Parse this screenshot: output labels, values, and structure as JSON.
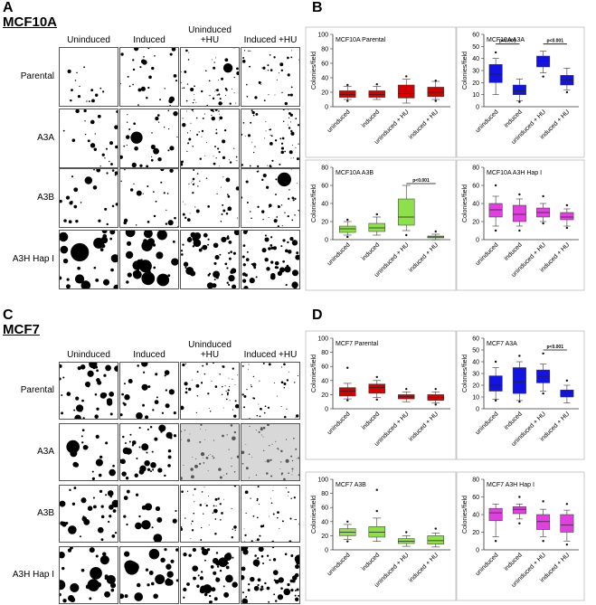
{
  "panels": [
    {
      "label": "A",
      "title": "MCF10A",
      "columns": [
        "Uninduced",
        "Induced",
        "Uninduced +HU",
        "Induced +HU"
      ],
      "rows": [
        "Parental",
        "A3A",
        "A3B",
        "A3H Hap I"
      ]
    },
    {
      "label": "C",
      "title": "MCF7",
      "columns": [
        "Uninduced",
        "Induced",
        "Uninduced +HU",
        "Induced +HU"
      ],
      "rows": [
        "Parental",
        "A3A",
        "A3B",
        "A3H Hap I"
      ]
    }
  ],
  "chart_labels": [
    "B",
    "D"
  ],
  "chart_data": [
    {
      "type": "box",
      "title": "MCF10A Parental",
      "y_label": "Colonies/field",
      "color": "#d40000",
      "categories": [
        "uninduced",
        "induced",
        "uninduced + HU",
        "induced + HU"
      ],
      "ylim": [
        0,
        100
      ],
      "yticks": [
        0,
        20,
        40,
        60,
        80,
        100
      ],
      "boxes": [
        {
          "min": 10,
          "q1": 13,
          "median": 17,
          "q3": 22,
          "max": 28,
          "outliers": [
            8,
            30
          ]
        },
        {
          "min": 10,
          "q1": 13,
          "median": 17,
          "q3": 22,
          "max": 28,
          "outliers": [
            31
          ]
        },
        {
          "min": 5,
          "q1": 12,
          "median": 18,
          "q3": 30,
          "max": 38,
          "outliers": [
            42
          ]
        },
        {
          "min": 10,
          "q1": 14,
          "median": 20,
          "q3": 27,
          "max": 35,
          "outliers": [
            8,
            36
          ]
        }
      ],
      "annotations": []
    },
    {
      "type": "box",
      "title": "MCF10A A3A",
      "y_label": "Colonies/field",
      "color": "#1414e0",
      "categories": [
        "uninduced",
        "induced",
        "uninduced + HU",
        "induced + HU"
      ],
      "ylim": [
        0,
        60
      ],
      "yticks": [
        0,
        10,
        20,
        30,
        40,
        50,
        60
      ],
      "boxes": [
        {
          "min": 10,
          "q1": 20,
          "median": 27,
          "q3": 35,
          "max": 40,
          "outliers": [
            45
          ]
        },
        {
          "min": 5,
          "q1": 10,
          "median": 13,
          "q3": 18,
          "max": 23,
          "outliers": [
            4
          ]
        },
        {
          "min": 28,
          "q1": 33,
          "median": 38,
          "q3": 42,
          "max": 46,
          "outliers": [
            25
          ]
        },
        {
          "min": 14,
          "q1": 18,
          "median": 22,
          "q3": 26,
          "max": 32,
          "outliers": [
            12
          ]
        }
      ],
      "annotations": [
        "p<0.001",
        "p<0.001"
      ]
    },
    {
      "type": "box",
      "title": "MCF10A A3B",
      "y_label": "Colonies/field",
      "color": "#8ee04a",
      "categories": [
        "uninduced",
        "induced",
        "uninduced + HU",
        "induced + HU"
      ],
      "ylim": [
        0,
        80
      ],
      "yticks": [
        0,
        20,
        40,
        60,
        80
      ],
      "boxes": [
        {
          "min": 5,
          "q1": 8,
          "median": 12,
          "q3": 15,
          "max": 20,
          "outliers": [
            3,
            22
          ]
        },
        {
          "min": 5,
          "q1": 9,
          "median": 13,
          "q3": 18,
          "max": 25,
          "outliers": [
            28
          ]
        },
        {
          "min": 10,
          "q1": 16,
          "median": 25,
          "q3": 45,
          "max": 60,
          "outliers": [
            5
          ]
        },
        {
          "min": 0,
          "q1": 2,
          "median": 3,
          "q3": 4,
          "max": 6,
          "outliers": [
            9
          ]
        }
      ],
      "annotations": [
        "p<0.001"
      ]
    },
    {
      "type": "box",
      "title": "MCF10A A3H Hap I",
      "y_label": "Colonies/field",
      "color": "#e040e0",
      "categories": [
        "uninduced",
        "induced",
        "uninduced + HU",
        "induced + HU"
      ],
      "ylim": [
        0,
        80
      ],
      "yticks": [
        0,
        20,
        40,
        60,
        80
      ],
      "boxes": [
        {
          "min": 15,
          "q1": 25,
          "median": 33,
          "q3": 40,
          "max": 48,
          "outliers": [
            60,
            10
          ]
        },
        {
          "min": 15,
          "q1": 20,
          "median": 28,
          "q3": 38,
          "max": 45,
          "outliers": [
            50,
            10
          ]
        },
        {
          "min": 20,
          "q1": 25,
          "median": 30,
          "q3": 35,
          "max": 40,
          "outliers": [
            48,
            18
          ]
        },
        {
          "min": 15,
          "q1": 22,
          "median": 25,
          "q3": 30,
          "max": 34,
          "outliers": [
            38,
            13
          ]
        }
      ],
      "annotations": []
    },
    {
      "type": "box",
      "title": "MCF7 Parental",
      "y_label": "Colonies/field",
      "color": "#d40000",
      "categories": [
        "uninduced",
        "induced",
        "uninduced + HU",
        "induced + HU"
      ],
      "ylim": [
        0,
        100
      ],
      "yticks": [
        0,
        20,
        40,
        60,
        80,
        100
      ],
      "boxes": [
        {
          "min": 14,
          "q1": 18,
          "median": 25,
          "q3": 30,
          "max": 36,
          "outliers": [
            58,
            12
          ]
        },
        {
          "min": 16,
          "q1": 22,
          "median": 30,
          "q3": 35,
          "max": 40,
          "outliers": [
            45,
            13
          ]
        },
        {
          "min": 10,
          "q1": 14,
          "median": 17,
          "q3": 20,
          "max": 24,
          "outliers": [
            28
          ]
        },
        {
          "min": 8,
          "q1": 12,
          "median": 16,
          "q3": 20,
          "max": 24,
          "outliers": [
            28,
            6
          ]
        }
      ],
      "annotations": []
    },
    {
      "type": "box",
      "title": "MCF7 A3A",
      "y_label": "Colonies/field",
      "color": "#1414e0",
      "categories": [
        "uninduced",
        "induced",
        "uninduced + HU",
        "induced + HU"
      ],
      "ylim": [
        0,
        60
      ],
      "yticks": [
        0,
        10,
        20,
        30,
        40,
        50,
        60
      ],
      "boxes": [
        {
          "min": 8,
          "q1": 15,
          "median": 20,
          "q3": 28,
          "max": 35,
          "outliers": [
            40,
            7
          ]
        },
        {
          "min": 7,
          "q1": 13,
          "median": 23,
          "q3": 35,
          "max": 40,
          "outliers": [
            45,
            6
          ]
        },
        {
          "min": 15,
          "q1": 22,
          "median": 27,
          "q3": 33,
          "max": 38,
          "outliers": [
            47,
            13
          ]
        },
        {
          "min": 5,
          "q1": 10,
          "median": 14,
          "q3": 16,
          "max": 20,
          "outliers": [
            24
          ]
        }
      ],
      "annotations": [
        "p<0.001"
      ]
    },
    {
      "type": "box",
      "title": "MCF7 A3B",
      "y_label": "Colonies/field",
      "color": "#8ee04a",
      "categories": [
        "uninduced",
        "induced",
        "uninduced + HU",
        "induced + HU"
      ],
      "ylim": [
        0,
        100
      ],
      "yticks": [
        0,
        20,
        40,
        60,
        80,
        100
      ],
      "boxes": [
        {
          "min": 15,
          "q1": 20,
          "median": 25,
          "q3": 30,
          "max": 36,
          "outliers": [
            40,
            12
          ]
        },
        {
          "min": 12,
          "q1": 18,
          "median": 25,
          "q3": 33,
          "max": 45,
          "outliers": [
            85,
            55
          ]
        },
        {
          "min": 5,
          "q1": 9,
          "median": 12,
          "q3": 16,
          "max": 20,
          "outliers": [
            25
          ]
        },
        {
          "min": 4,
          "q1": 8,
          "median": 13,
          "q3": 20,
          "max": 24,
          "outliers": [
            30
          ]
        }
      ],
      "annotations": []
    },
    {
      "type": "box",
      "title": "MCF7 A3H Hap I",
      "y_label": "Colonies/field",
      "color": "#e040e0",
      "categories": [
        "uninduced",
        "induced",
        "uninduced + HU",
        "induced + HU"
      ],
      "ylim": [
        0,
        80
      ],
      "yticks": [
        0,
        20,
        40,
        60,
        80
      ],
      "boxes": [
        {
          "min": 15,
          "q1": 33,
          "median": 42,
          "q3": 47,
          "max": 52,
          "outliers": [
            10
          ]
        },
        {
          "min": 35,
          "q1": 41,
          "median": 46,
          "q3": 49,
          "max": 52,
          "outliers": [
            60,
            30
          ]
        },
        {
          "min": 15,
          "q1": 23,
          "median": 32,
          "q3": 40,
          "max": 46,
          "outliers": [
            55,
            10
          ]
        },
        {
          "min": 10,
          "q1": 20,
          "median": 28,
          "q3": 40,
          "max": 45,
          "outliers": [
            52,
            6
          ]
        }
      ],
      "annotations": []
    }
  ]
}
